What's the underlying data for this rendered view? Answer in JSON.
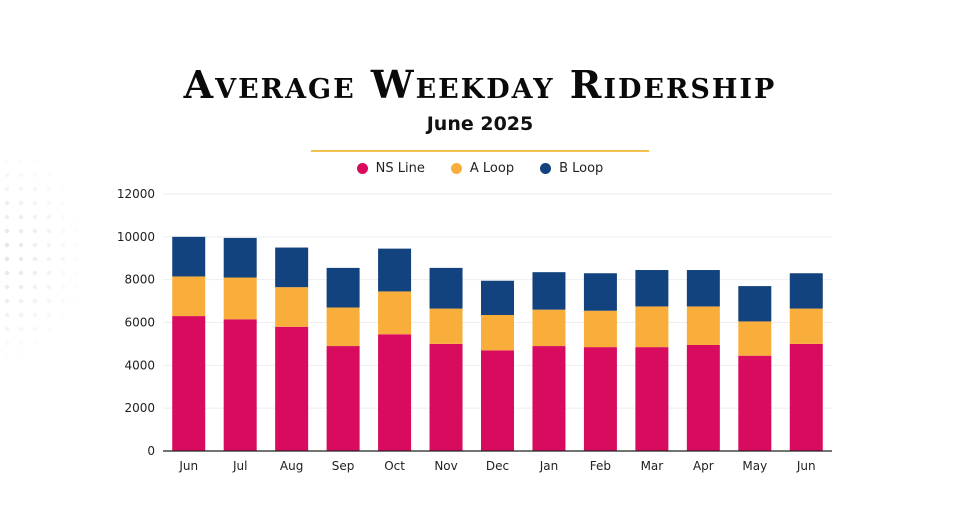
{
  "title": "Average Weekday Ridership",
  "subtitle": "June 2025",
  "colors": {
    "ns": "#d90b5f",
    "a": "#f9ae3b",
    "b": "#13437e",
    "accent_rule": "#f2c14e"
  },
  "chart_data": {
    "type": "bar",
    "stacked": true,
    "title": "Average Weekday Ridership",
    "subtitle": "June 2025",
    "xlabel": "",
    "ylabel": "",
    "ylim": [
      0,
      12000
    ],
    "yticks": [
      0,
      2000,
      4000,
      6000,
      8000,
      10000,
      12000
    ],
    "grid": true,
    "legend_position": "top-center",
    "categories": [
      "Jun",
      "Jul",
      "Aug",
      "Sep",
      "Oct",
      "Nov",
      "Dec",
      "Jan",
      "Feb",
      "Mar",
      "Apr",
      "May",
      "Jun"
    ],
    "series": [
      {
        "name": "NS Line",
        "color": "#d90b5f",
        "values": [
          6300,
          6150,
          5800,
          4900,
          5450,
          5000,
          4700,
          4900,
          4850,
          4850,
          4950,
          4450,
          5000
        ]
      },
      {
        "name": "A Loop",
        "color": "#f9ae3b",
        "values": [
          1850,
          1950,
          1850,
          1800,
          2000,
          1650,
          1650,
          1700,
          1700,
          1900,
          1800,
          1600,
          1650
        ]
      },
      {
        "name": "B Loop",
        "color": "#13437e",
        "values": [
          1850,
          1850,
          1850,
          1850,
          2000,
          1900,
          1600,
          1750,
          1750,
          1700,
          1700,
          1650,
          1650
        ]
      }
    ]
  }
}
